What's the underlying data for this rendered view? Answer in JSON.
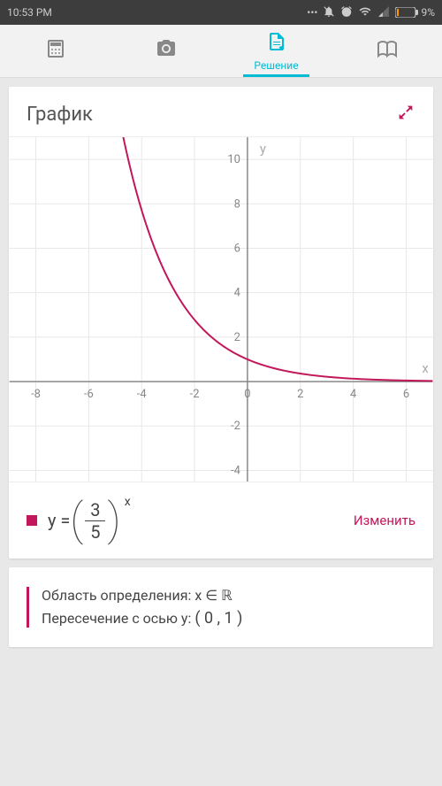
{
  "statusbar": {
    "time": "10:53 PM",
    "battery_pct": "9%"
  },
  "tabs": {
    "active_label": "Решение"
  },
  "graph_card": {
    "title": "График",
    "chart": {
      "type": "line",
      "xmin": -9,
      "xmax": 7,
      "ymin": -4.5,
      "ymax": 11,
      "xticks": [
        -8,
        -6,
        -4,
        -2,
        0,
        2,
        4,
        6
      ],
      "yticks": [
        -4,
        -2,
        2,
        4,
        6,
        8,
        10
      ],
      "x_axis_label": "x",
      "y_axis_label": "y",
      "grid_color": "#e8e8e8",
      "axis_color": "#888888",
      "curve_color": "#c2185b",
      "curve": {
        "base": 0.6
      }
    },
    "equation": {
      "prefix": "y = ",
      "numerator": "3",
      "denominator": "5",
      "exponent": "x"
    },
    "edit_label": "Изменить"
  },
  "info": {
    "domain_label": "Область определения: x ∈ ℝ",
    "y_intercept_label": "Пересечение с осью y:",
    "y_intercept_value": "( 0 , 1 )"
  }
}
